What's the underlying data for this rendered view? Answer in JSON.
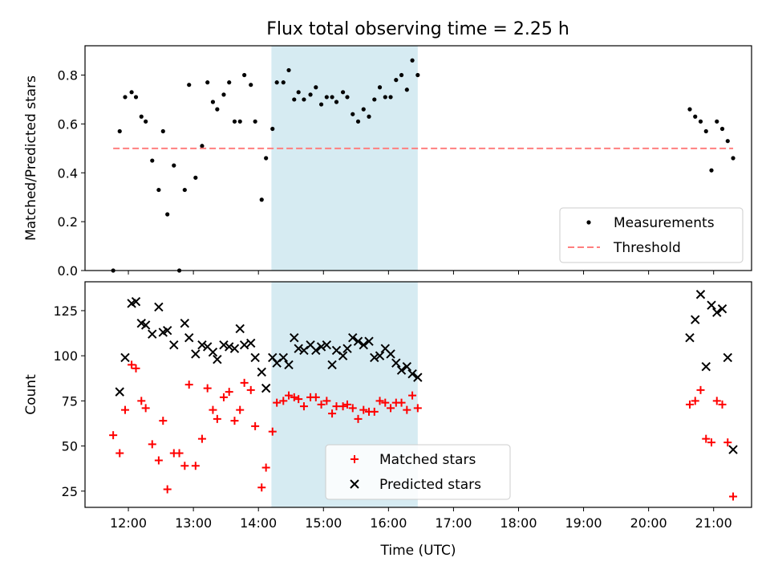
{
  "figure_title": "Flux total observing time = 2.25 h",
  "chart_data": [
    {
      "type": "scatter",
      "xlabel": "",
      "ylabel": "Matched/Predicted stars",
      "xlim": [
        "11:20",
        "21:35"
      ],
      "ylim": [
        0,
        0.92
      ],
      "yticks": [
        0.0,
        0.2,
        0.4,
        0.6,
        0.8
      ],
      "ytick_labels": [
        "0.0",
        "0.2",
        "0.4",
        "0.6",
        "0.8"
      ],
      "grid": false,
      "highlight_span": {
        "start": "14:12",
        "end": "16:27",
        "color": "#add8e6"
      },
      "legend_position": "lower-right",
      "series": [
        {
          "name": "Measurements",
          "kind": "points",
          "color": "#000000",
          "marker": "dot",
          "points": [
            [
              "11:46",
              0.0
            ],
            [
              "11:52",
              0.57
            ],
            [
              "11:57",
              0.71
            ],
            [
              "12:03",
              0.73
            ],
            [
              "12:07",
              0.71
            ],
            [
              "12:12",
              0.63
            ],
            [
              "12:16",
              0.61
            ],
            [
              "12:22",
              0.45
            ],
            [
              "12:28",
              0.33
            ],
            [
              "12:32",
              0.57
            ],
            [
              "12:36",
              0.23
            ],
            [
              "12:42",
              0.43
            ],
            [
              "12:47",
              0.0
            ],
            [
              "12:52",
              0.33
            ],
            [
              "12:56",
              0.76
            ],
            [
              "13:02",
              0.38
            ],
            [
              "13:08",
              0.51
            ],
            [
              "13:13",
              0.77
            ],
            [
              "13:18",
              0.69
            ],
            [
              "13:22",
              0.66
            ],
            [
              "13:28",
              0.72
            ],
            [
              "13:33",
              0.77
            ],
            [
              "13:38",
              0.61
            ],
            [
              "13:43",
              0.61
            ],
            [
              "13:47",
              0.8
            ],
            [
              "13:53",
              0.76
            ],
            [
              "13:57",
              0.61
            ],
            [
              "14:03",
              0.29
            ],
            [
              "14:07",
              0.46
            ],
            [
              "14:13",
              0.58
            ],
            [
              "14:17",
              0.77
            ],
            [
              "14:23",
              0.77
            ],
            [
              "14:28",
              0.82
            ],
            [
              "14:33",
              0.7
            ],
            [
              "14:37",
              0.73
            ],
            [
              "14:42",
              0.7
            ],
            [
              "14:48",
              0.72
            ],
            [
              "14:53",
              0.75
            ],
            [
              "14:58",
              0.68
            ],
            [
              "15:03",
              0.71
            ],
            [
              "15:08",
              0.71
            ],
            [
              "15:12",
              0.69
            ],
            [
              "15:18",
              0.73
            ],
            [
              "15:22",
              0.71
            ],
            [
              "15:27",
              0.64
            ],
            [
              "15:32",
              0.61
            ],
            [
              "15:37",
              0.66
            ],
            [
              "15:42",
              0.63
            ],
            [
              "15:47",
              0.7
            ],
            [
              "15:52",
              0.75
            ],
            [
              "15:57",
              0.71
            ],
            [
              "16:02",
              0.71
            ],
            [
              "16:07",
              0.78
            ],
            [
              "16:12",
              0.8
            ],
            [
              "16:17",
              0.74
            ],
            [
              "16:22",
              0.86
            ],
            [
              "16:27",
              0.8
            ],
            [
              "20:38",
              0.66
            ],
            [
              "20:43",
              0.63
            ],
            [
              "20:48",
              0.61
            ],
            [
              "20:53",
              0.57
            ],
            [
              "20:58",
              0.41
            ],
            [
              "21:03",
              0.61
            ],
            [
              "21:08",
              0.58
            ],
            [
              "21:13",
              0.53
            ],
            [
              "21:18",
              0.46
            ]
          ]
        },
        {
          "name": "Threshold",
          "kind": "line",
          "color": "#ff7f7f",
          "dashed": true,
          "points": [
            [
              "11:46",
              0.5
            ],
            [
              "21:18",
              0.5
            ]
          ]
        }
      ]
    },
    {
      "type": "scatter",
      "xlabel": "Time (UTC)",
      "ylabel": "Count",
      "xlim": [
        "11:20",
        "21:35"
      ],
      "ylim": [
        16,
        141
      ],
      "yticks": [
        25,
        50,
        75,
        100,
        125
      ],
      "ytick_labels": [
        "25",
        "50",
        "75",
        "100",
        "125"
      ],
      "xtick_labels": [
        "12:00",
        "13:00",
        "14:00",
        "15:00",
        "16:00",
        "17:00",
        "18:00",
        "19:00",
        "20:00",
        "21:00"
      ],
      "grid": false,
      "highlight_span": {
        "start": "14:12",
        "end": "16:27",
        "color": "#add8e6"
      },
      "legend_position": "lower-center",
      "series": [
        {
          "name": "Matched stars",
          "kind": "points",
          "color": "#ff0000",
          "marker": "plus",
          "points": [
            [
              "11:46",
              56
            ],
            [
              "11:52",
              46
            ],
            [
              "11:57",
              70
            ],
            [
              "12:03",
              95
            ],
            [
              "12:07",
              93
            ],
            [
              "12:12",
              75
            ],
            [
              "12:16",
              71
            ],
            [
              "12:22",
              51
            ],
            [
              "12:28",
              42
            ],
            [
              "12:32",
              64
            ],
            [
              "12:36",
              26
            ],
            [
              "12:42",
              46
            ],
            [
              "12:47",
              46
            ],
            [
              "12:52",
              39
            ],
            [
              "12:56",
              84
            ],
            [
              "13:02",
              39
            ],
            [
              "13:08",
              54
            ],
            [
              "13:13",
              82
            ],
            [
              "13:18",
              70
            ],
            [
              "13:22",
              65
            ],
            [
              "13:28",
              77
            ],
            [
              "13:33",
              80
            ],
            [
              "13:38",
              64
            ],
            [
              "13:43",
              70
            ],
            [
              "13:47",
              85
            ],
            [
              "13:53",
              81
            ],
            [
              "13:57",
              61
            ],
            [
              "14:03",
              27
            ],
            [
              "14:07",
              38
            ],
            [
              "14:13",
              58
            ],
            [
              "14:17",
              74
            ],
            [
              "14:23",
              75
            ],
            [
              "14:28",
              78
            ],
            [
              "14:33",
              77
            ],
            [
              "14:37",
              76
            ],
            [
              "14:42",
              72
            ],
            [
              "14:48",
              77
            ],
            [
              "14:53",
              77
            ],
            [
              "14:58",
              73
            ],
            [
              "15:03",
              75
            ],
            [
              "15:08",
              68
            ],
            [
              "15:12",
              72
            ],
            [
              "15:18",
              72
            ],
            [
              "15:22",
              73
            ],
            [
              "15:27",
              71
            ],
            [
              "15:32",
              65
            ],
            [
              "15:37",
              70
            ],
            [
              "15:42",
              69
            ],
            [
              "15:47",
              69
            ],
            [
              "15:52",
              75
            ],
            [
              "15:57",
              74
            ],
            [
              "16:02",
              71
            ],
            [
              "16:07",
              74
            ],
            [
              "16:12",
              74
            ],
            [
              "16:17",
              70
            ],
            [
              "16:22",
              78
            ],
            [
              "16:27",
              71
            ],
            [
              "20:38",
              73
            ],
            [
              "20:43",
              75
            ],
            [
              "20:48",
              81
            ],
            [
              "20:53",
              54
            ],
            [
              "20:58",
              52
            ],
            [
              "21:03",
              75
            ],
            [
              "21:08",
              73
            ],
            [
              "21:13",
              52
            ],
            [
              "21:18",
              22
            ]
          ]
        },
        {
          "name": "Predicted stars",
          "kind": "points",
          "color": "#000000",
          "marker": "x",
          "points": [
            [
              "11:52",
              80
            ],
            [
              "11:57",
              99
            ],
            [
              "12:03",
              129
            ],
            [
              "12:07",
              130
            ],
            [
              "12:12",
              118
            ],
            [
              "12:16",
              117
            ],
            [
              "12:22",
              112
            ],
            [
              "12:28",
              127
            ],
            [
              "12:32",
              113
            ],
            [
              "12:36",
              114
            ],
            [
              "12:42",
              106
            ],
            [
              "12:52",
              118
            ],
            [
              "12:56",
              110
            ],
            [
              "13:02",
              101
            ],
            [
              "13:08",
              106
            ],
            [
              "13:13",
              105
            ],
            [
              "13:18",
              102
            ],
            [
              "13:22",
              98
            ],
            [
              "13:28",
              106
            ],
            [
              "13:33",
              105
            ],
            [
              "13:38",
              104
            ],
            [
              "13:43",
              115
            ],
            [
              "13:47",
              106
            ],
            [
              "13:53",
              107
            ],
            [
              "13:57",
              99
            ],
            [
              "14:03",
              91
            ],
            [
              "14:07",
              82
            ],
            [
              "14:13",
              99
            ],
            [
              "14:17",
              96
            ],
            [
              "14:23",
              99
            ],
            [
              "14:28",
              95
            ],
            [
              "14:33",
              110
            ],
            [
              "14:37",
              104
            ],
            [
              "14:42",
              103
            ],
            [
              "14:48",
              106
            ],
            [
              "14:53",
              103
            ],
            [
              "14:58",
              105
            ],
            [
              "15:03",
              106
            ],
            [
              "15:08",
              95
            ],
            [
              "15:12",
              103
            ],
            [
              "15:18",
              100
            ],
            [
              "15:22",
              104
            ],
            [
              "15:27",
              110
            ],
            [
              "15:32",
              108
            ],
            [
              "15:37",
              106
            ],
            [
              "15:42",
              108
            ],
            [
              "15:47",
              99
            ],
            [
              "15:52",
              100
            ],
            [
              "15:57",
              104
            ],
            [
              "16:02",
              101
            ],
            [
              "16:07",
              96
            ],
            [
              "16:12",
              92
            ],
            [
              "16:17",
              94
            ],
            [
              "16:22",
              90
            ],
            [
              "16:27",
              88
            ],
            [
              "20:38",
              110
            ],
            [
              "20:43",
              120
            ],
            [
              "20:48",
              134
            ],
            [
              "20:53",
              94
            ],
            [
              "20:58",
              128
            ],
            [
              "21:03",
              124
            ],
            [
              "21:08",
              126
            ],
            [
              "21:13",
              99
            ],
            [
              "21:18",
              48
            ]
          ]
        }
      ]
    }
  ]
}
